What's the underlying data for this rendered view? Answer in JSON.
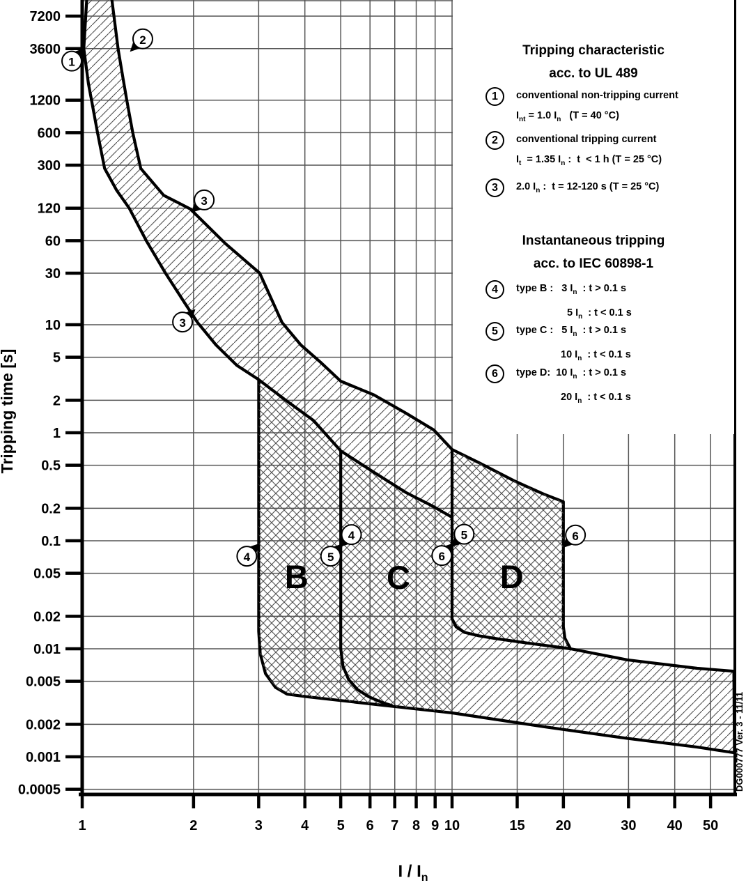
{
  "doc_code": "DG000777 Ver. 3 - 11/11",
  "legend_ul": {
    "title_lines": [
      "Tripping characteristic",
      "acc. to UL 489"
    ],
    "items": [
      {
        "n": "1",
        "lines": [
          [
            "conventional non-tripping current"
          ],
          [
            "I",
            "_nt",
            " = 1.0 I",
            "_n",
            "   (T = 40 °C)"
          ]
        ],
        "indent2": 0
      },
      {
        "n": "2",
        "lines": [
          [
            "conventional tripping current"
          ],
          [
            "I",
            "_t",
            "  = 1.35 I",
            "_n",
            " :  t  < 1 h (T = 25 °C)"
          ]
        ],
        "indent2": 0
      },
      {
        "n": "3",
        "lines": [
          [
            "2.0 I",
            "_n",
            " :  t = 12-120 s (T = 25 °C)"
          ]
        ],
        "indent2": 0
      }
    ]
  },
  "legend_iec": {
    "title_lines": [
      "Instantaneous tripping",
      "acc. to IEC 60898-1"
    ],
    "items": [
      {
        "n": "4",
        "lines": [
          [
            "type B :   3 I",
            "_n",
            "  : t > 0.1 s"
          ],
          [
            "5 I",
            "_n",
            "  : t < 0.1 s"
          ]
        ],
        "indent2": 73
      },
      {
        "n": "5",
        "lines": [
          [
            "type C :   5 I",
            "_n",
            "  : t > 0.1 s"
          ],
          [
            "10 I",
            "_n",
            "  : t < 0.1 s"
          ]
        ],
        "indent2": 64
      },
      {
        "n": "6",
        "lines": [
          [
            "type D:  10 I",
            "_n",
            "  : t > 0.1 s"
          ],
          [
            "20 I",
            "_n",
            "  : t < 0.1 s"
          ]
        ],
        "indent2": 64
      }
    ]
  },
  "chart_data": {
    "type": "line",
    "scale": "log-log",
    "title": "Tripping characteristic acc. to UL 489 / Instantaneous tripping acc. to IEC 60898-1",
    "ylabel": "Tripping time [s]",
    "xlabel_rich": [
      "I / I",
      "_n"
    ],
    "grid": true,
    "x_ticks": [
      "1",
      "2",
      "3",
      "4",
      "5",
      "6",
      "7",
      "8",
      "9",
      "10",
      "15",
      "20",
      "30",
      "40",
      "50"
    ],
    "y_ticks": [
      "7200",
      "3600",
      "1200",
      "600",
      "300",
      "120",
      "60",
      "30",
      "10",
      "5",
      "2",
      "1",
      "0.5",
      "0.2",
      "0.1",
      "0.05",
      "0.02",
      "0.01",
      "0.005",
      "0.002",
      "0.001",
      "0.0005"
    ],
    "x_range": [
      1,
      58
    ],
    "y_range": [
      0.00045,
      12000
    ],
    "region_labels": [
      {
        "label": "B",
        "I": 3.8,
        "t": 0.0363
      },
      {
        "label": "C",
        "I": 7.16,
        "t": 0.0358
      },
      {
        "label": "D",
        "I": 14.5,
        "t": 0.0363
      }
    ],
    "markers": [
      {
        "n": "1",
        "I": 0.937,
        "t": 2760,
        "dir": "ne"
      },
      {
        "n": "2",
        "I": 1.458,
        "t": 4430,
        "dir": "sw"
      },
      {
        "n": "3",
        "I": 2.137,
        "t": 143,
        "dir": "sw"
      },
      {
        "n": "3",
        "I": 1.868,
        "t": 10.6,
        "dir": "ne"
      },
      {
        "n": "4",
        "I": 2.787,
        "t": 0.072,
        "dir": "ne"
      },
      {
        "n": "4",
        "I": 5.345,
        "t": 0.114,
        "dir": "sw"
      },
      {
        "n": "5",
        "I": 4.697,
        "t": 0.072,
        "dir": "ne"
      },
      {
        "n": "5",
        "I": 10.78,
        "t": 0.115,
        "dir": "sw"
      },
      {
        "n": "6",
        "I": 9.382,
        "t": 0.073,
        "dir": "ne"
      },
      {
        "n": "6",
        "I": 21.56,
        "t": 0.113,
        "dir": "sw"
      }
    ],
    "series": [
      {
        "id": "lower",
        "name": "1 - conventional non-tripping boundary (1.0 In)",
        "points": [
          [
            1.03,
            11000
          ],
          [
            1.01,
            3600
          ],
          [
            1.04,
            1700
          ],
          [
            1.06,
            1200
          ],
          [
            1.1,
            600
          ],
          [
            1.15,
            280
          ],
          [
            1.24,
            175
          ],
          [
            1.34,
            120
          ],
          [
            1.49,
            60
          ],
          [
            1.68,
            30
          ],
          [
            1.87,
            17
          ],
          [
            2.05,
            10.5
          ],
          [
            2.3,
            6.5
          ],
          [
            2.62,
            4.2
          ],
          [
            3,
            3.1
          ],
          [
            3.55,
            2.0
          ],
          [
            4.22,
            1.3
          ],
          [
            5,
            0.68
          ],
          [
            6.15,
            0.43
          ],
          [
            7.5,
            0.28
          ],
          [
            8.85,
            0.21
          ],
          [
            10,
            0.165
          ]
        ]
      },
      {
        "id": "upper",
        "name": "2 - conventional tripping boundary (1.35 In)",
        "points": [
          [
            1.2,
            11000
          ],
          [
            1.25,
            3600
          ],
          [
            1.29,
            1900
          ],
          [
            1.32,
            1200
          ],
          [
            1.37,
            600
          ],
          [
            1.44,
            280
          ],
          [
            1.66,
            158
          ],
          [
            1.96,
            118
          ],
          [
            2.43,
            57
          ],
          [
            3.02,
            30
          ],
          [
            3.47,
            10.5
          ],
          [
            3.9,
            6.5
          ],
          [
            4.41,
            4.5
          ],
          [
            5,
            3.0
          ],
          [
            6.15,
            2.24
          ],
          [
            7.5,
            1.52
          ],
          [
            8.93,
            1.06
          ],
          [
            10,
            0.7
          ],
          [
            11.8,
            0.53
          ],
          [
            14.7,
            0.36
          ],
          [
            17.7,
            0.27
          ],
          [
            20,
            0.23
          ]
        ]
      },
      {
        "id": "b_left",
        "name": "4 - type B instantaneous limit (3 In)",
        "points": [
          [
            3,
            3.1
          ],
          [
            3,
            0.0145
          ],
          [
            3.03,
            0.009
          ],
          [
            3.13,
            0.0059
          ],
          [
            3.33,
            0.0044
          ],
          [
            3.58,
            0.0038
          ],
          [
            4.05,
            0.0036
          ]
        ]
      },
      {
        "id": "c_left",
        "name": "5 - type C instantaneous limit (5 In)",
        "points": [
          [
            5,
            0.68
          ],
          [
            5,
            0.01
          ],
          [
            5.07,
            0.0069
          ],
          [
            5.25,
            0.0052
          ],
          [
            5.55,
            0.0042
          ],
          [
            5.95,
            0.0036
          ],
          [
            6.45,
            0.0032
          ],
          [
            6.9,
            0.00297
          ]
        ]
      },
      {
        "id": "d_left",
        "name": "6 - type D instantaneous limit (10 In)",
        "points": [
          [
            10,
            0.7
          ],
          [
            10,
            0.019
          ],
          [
            10.25,
            0.016
          ],
          [
            10.8,
            0.0142
          ],
          [
            11.8,
            0.0132
          ],
          [
            13.2,
            0.0124
          ],
          [
            16,
            0.0113
          ],
          [
            20.9,
            0.01
          ]
        ]
      },
      {
        "id": "v20",
        "name": "6 - type D instantaneous limit (20 In)",
        "points": [
          [
            20,
            0.23
          ],
          [
            20,
            0.016
          ],
          [
            20.2,
            0.0125
          ],
          [
            20.9,
            0.01
          ]
        ]
      },
      {
        "id": "d_floor",
        "name": "type D instantaneous floor",
        "points": [
          [
            20.9,
            0.01
          ],
          [
            29.8,
            0.0079
          ],
          [
            46,
            0.0066
          ],
          [
            57.8,
            0.0062
          ]
        ]
      },
      {
        "id": "floor_min",
        "name": "minimum instantaneous trip time boundary",
        "points": [
          [
            4.05,
            0.0036
          ],
          [
            6.5,
            0.003
          ],
          [
            10,
            0.00255
          ],
          [
            17.7,
            0.0019
          ],
          [
            29.8,
            0.00148
          ],
          [
            46,
            0.00123
          ],
          [
            58,
            0.00109
          ]
        ]
      }
    ]
  }
}
